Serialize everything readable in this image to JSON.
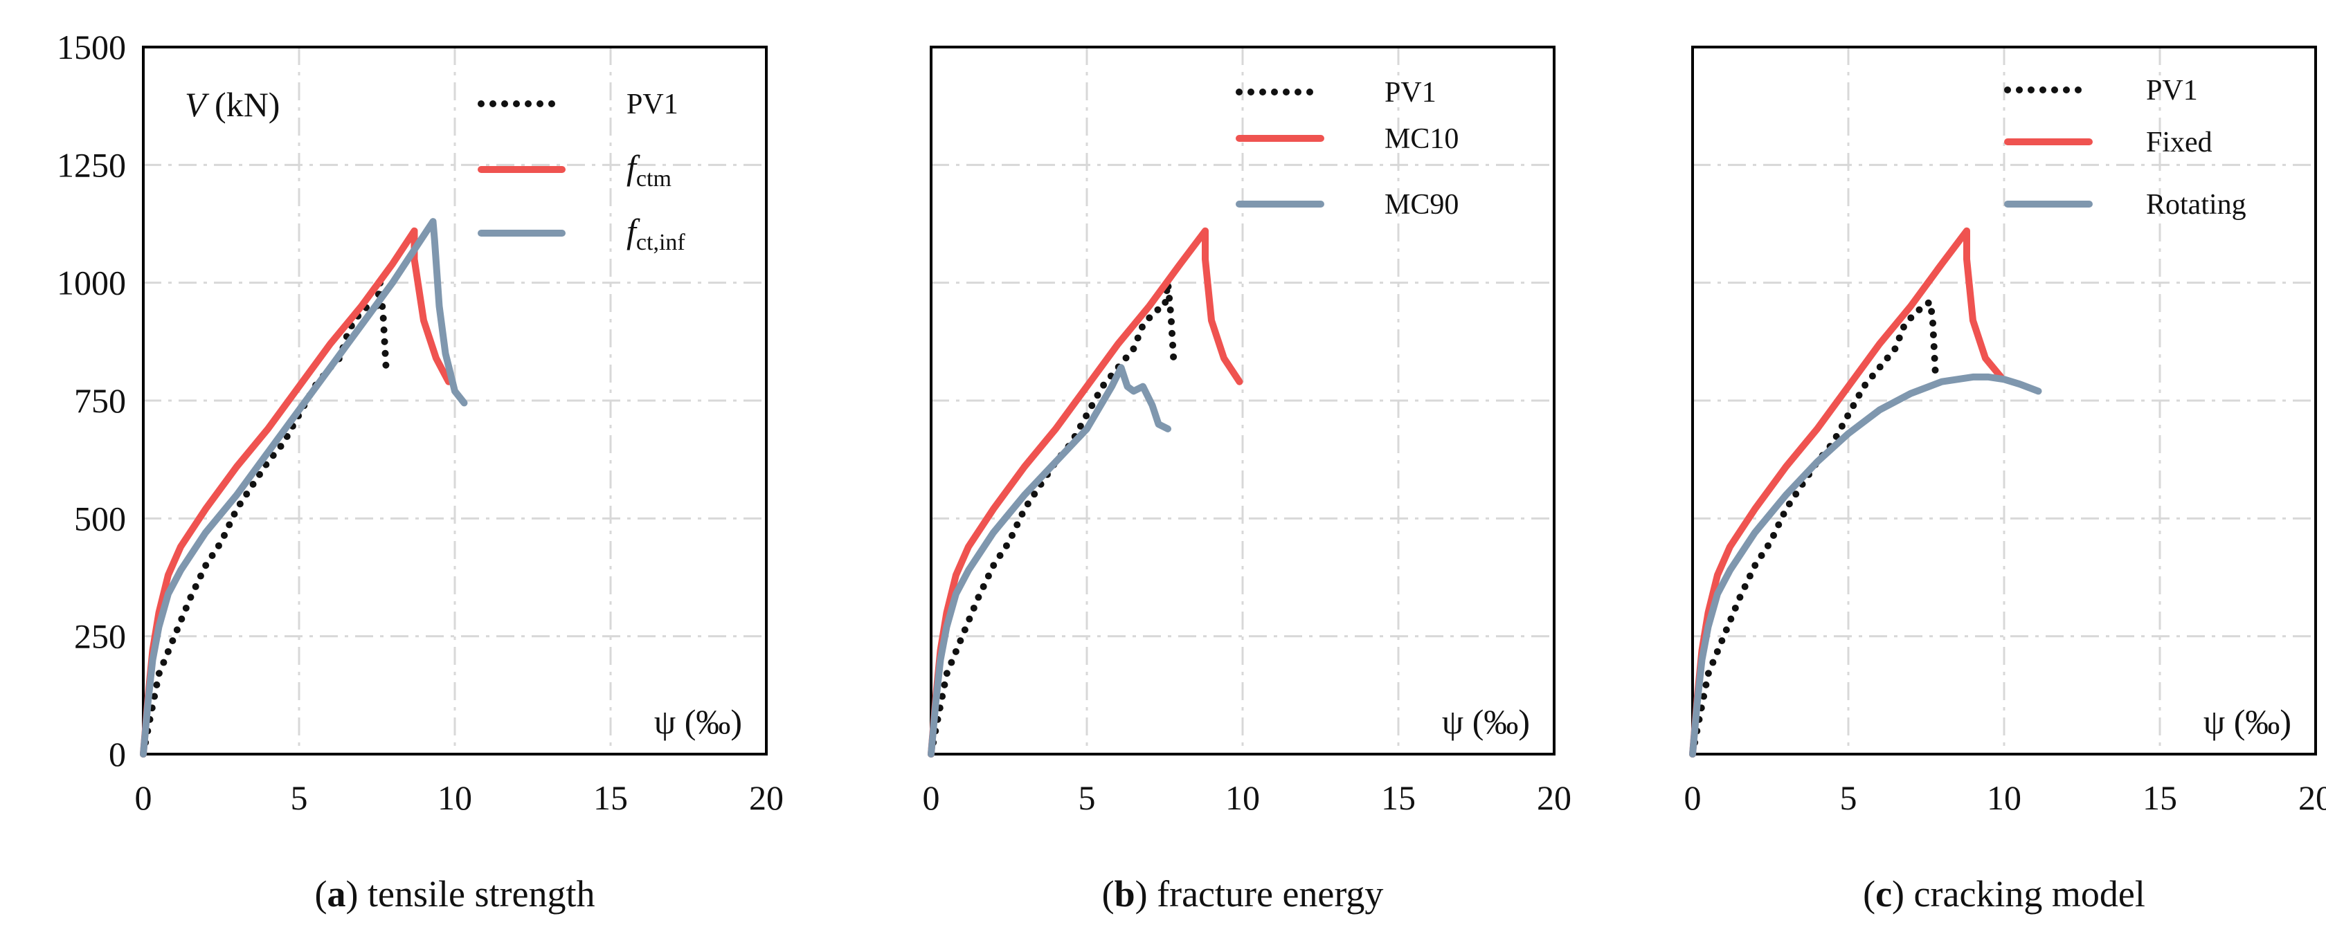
{
  "colors": {
    "pv1": "#111111",
    "red": "#ef5350",
    "blue": "#7f97ae",
    "grid": "#d8d8d8",
    "frame": "#000000"
  },
  "shared": {
    "ylabel_italic": "V",
    "ylabel_unit": " (kN)",
    "xlabel": "ψ (‰)",
    "y_ticks": [
      "0",
      "250",
      "500",
      "750",
      "1000",
      "1250",
      "1500"
    ],
    "x_ticks": [
      "0",
      "5",
      "10",
      "15",
      "20"
    ]
  },
  "chart_data": [
    {
      "type": "line",
      "caption_letter": "a",
      "caption_text": " tensile strength",
      "xlabel": "ψ (‰)",
      "ylabel": "V (kN)",
      "xlim": [
        0,
        20
      ],
      "ylim": [
        0,
        1500
      ],
      "legend": [
        "PV1",
        "fctm",
        "fct,inf"
      ],
      "series": [
        {
          "name": "PV1",
          "style": "dotted",
          "color": "#111111",
          "x": [
            0,
            0.2,
            0.5,
            1.0,
            1.5,
            2.0,
            2.5,
            3.0,
            3.5,
            4.0,
            4.5,
            5.0,
            5.5,
            6.0,
            6.3,
            6.6,
            6.9,
            7.2,
            7.5,
            7.6,
            7.7,
            7.8
          ],
          "y": [
            0,
            70,
            170,
            250,
            330,
            400,
            450,
            520,
            570,
            620,
            660,
            720,
            780,
            820,
            840,
            900,
            930,
            950,
            950,
            1000,
            930,
            810
          ]
        },
        {
          "name": "fctm",
          "style": "solid",
          "color": "#ef5350",
          "x": [
            0,
            0.15,
            0.3,
            0.5,
            0.8,
            1.2,
            2,
            3,
            4,
            5,
            6,
            7,
            8,
            8.7,
            8.7,
            9.0,
            9.4,
            9.8
          ],
          "y": [
            0,
            120,
            220,
            300,
            380,
            440,
            520,
            610,
            690,
            780,
            870,
            950,
            1040,
            1110,
            1050,
            920,
            840,
            790
          ]
        },
        {
          "name": "fct,inf",
          "style": "solid",
          "color": "#7f97ae",
          "x": [
            0,
            0.15,
            0.3,
            0.5,
            0.8,
            1.2,
            2,
            3,
            4,
            5,
            6,
            7,
            8,
            9.3,
            9.35,
            9.5,
            9.7,
            10.0,
            10.3
          ],
          "y": [
            0,
            110,
            200,
            270,
            340,
            390,
            470,
            550,
            640,
            730,
            820,
            910,
            1000,
            1130,
            1090,
            950,
            850,
            770,
            745
          ]
        }
      ]
    },
    {
      "type": "line",
      "caption_letter": "b",
      "caption_text": " fracture energy",
      "xlabel": "ψ (‰)",
      "xlim": [
        0,
        20
      ],
      "ylim": [
        0,
        1500
      ],
      "legend": [
        "PV1",
        "MC10",
        "MC90"
      ],
      "series": [
        {
          "name": "PV1",
          "style": "dotted",
          "color": "#111111",
          "x": [
            0,
            0.2,
            0.5,
            1.0,
            1.5,
            2.0,
            2.5,
            3.0,
            3.5,
            4.0,
            4.5,
            5.0,
            5.5,
            6.0,
            6.5,
            6.8,
            7.2,
            7.5,
            7.6,
            7.7,
            7.8
          ],
          "y": [
            0,
            70,
            170,
            250,
            330,
            400,
            450,
            520,
            570,
            620,
            660,
            720,
            780,
            820,
            860,
            910,
            940,
            950,
            1000,
            930,
            820
          ]
        },
        {
          "name": "MC10",
          "style": "solid",
          "color": "#ef5350",
          "x": [
            0,
            0.15,
            0.3,
            0.5,
            0.8,
            1.2,
            2,
            3,
            4,
            5,
            6,
            7,
            8,
            8.8,
            8.8,
            9.0,
            9.4,
            9.9
          ],
          "y": [
            0,
            120,
            220,
            300,
            380,
            440,
            520,
            610,
            690,
            780,
            870,
            950,
            1040,
            1110,
            1050,
            920,
            840,
            790
          ]
        },
        {
          "name": "MC90",
          "style": "solid",
          "color": "#7f97ae",
          "x": [
            0,
            0.15,
            0.3,
            0.5,
            0.8,
            1.2,
            2,
            3,
            4,
            5,
            5.8,
            6.1,
            6.3,
            6.5,
            6.8,
            7.1,
            7.3,
            7.6
          ],
          "y": [
            0,
            110,
            200,
            270,
            340,
            390,
            470,
            550,
            620,
            690,
            780,
            820,
            780,
            770,
            780,
            740,
            700,
            690
          ]
        }
      ]
    },
    {
      "type": "line",
      "caption_letter": "c",
      "caption_text": " cracking model",
      "xlabel": "ψ (‰)",
      "xlim": [
        0,
        20
      ],
      "ylim": [
        0,
        1500
      ],
      "legend": [
        "PV1",
        "Fixed",
        "Rotating"
      ],
      "series": [
        {
          "name": "PV1",
          "style": "dotted",
          "color": "#111111",
          "x": [
            0,
            0.2,
            0.5,
            1.0,
            1.5,
            2.0,
            2.5,
            3.0,
            3.5,
            4.0,
            4.5,
            5.0,
            5.5,
            6.0,
            6.5,
            6.8,
            7.2,
            7.5,
            7.6,
            7.7,
            7.8
          ],
          "y": [
            0,
            70,
            170,
            250,
            330,
            400,
            450,
            520,
            570,
            620,
            660,
            720,
            780,
            820,
            860,
            910,
            940,
            950,
            960,
            930,
            800
          ]
        },
        {
          "name": "Fixed",
          "style": "solid",
          "color": "#ef5350",
          "x": [
            0,
            0.15,
            0.3,
            0.5,
            0.8,
            1.2,
            2,
            3,
            4,
            5,
            6,
            7,
            8,
            8.8,
            8.8,
            9.0,
            9.4,
            9.9
          ],
          "y": [
            0,
            120,
            220,
            300,
            380,
            440,
            520,
            610,
            690,
            780,
            870,
            950,
            1040,
            1110,
            1050,
            920,
            840,
            800
          ]
        },
        {
          "name": "Rotating",
          "style": "solid",
          "color": "#7f97ae",
          "x": [
            0,
            0.15,
            0.3,
            0.5,
            0.8,
            1.2,
            2,
            3,
            4,
            5,
            6,
            7,
            8,
            9,
            9.5,
            10,
            10.5,
            11.1
          ],
          "y": [
            0,
            110,
            200,
            270,
            340,
            390,
            470,
            550,
            620,
            680,
            730,
            765,
            790,
            800,
            800,
            795,
            785,
            770
          ]
        }
      ]
    }
  ]
}
